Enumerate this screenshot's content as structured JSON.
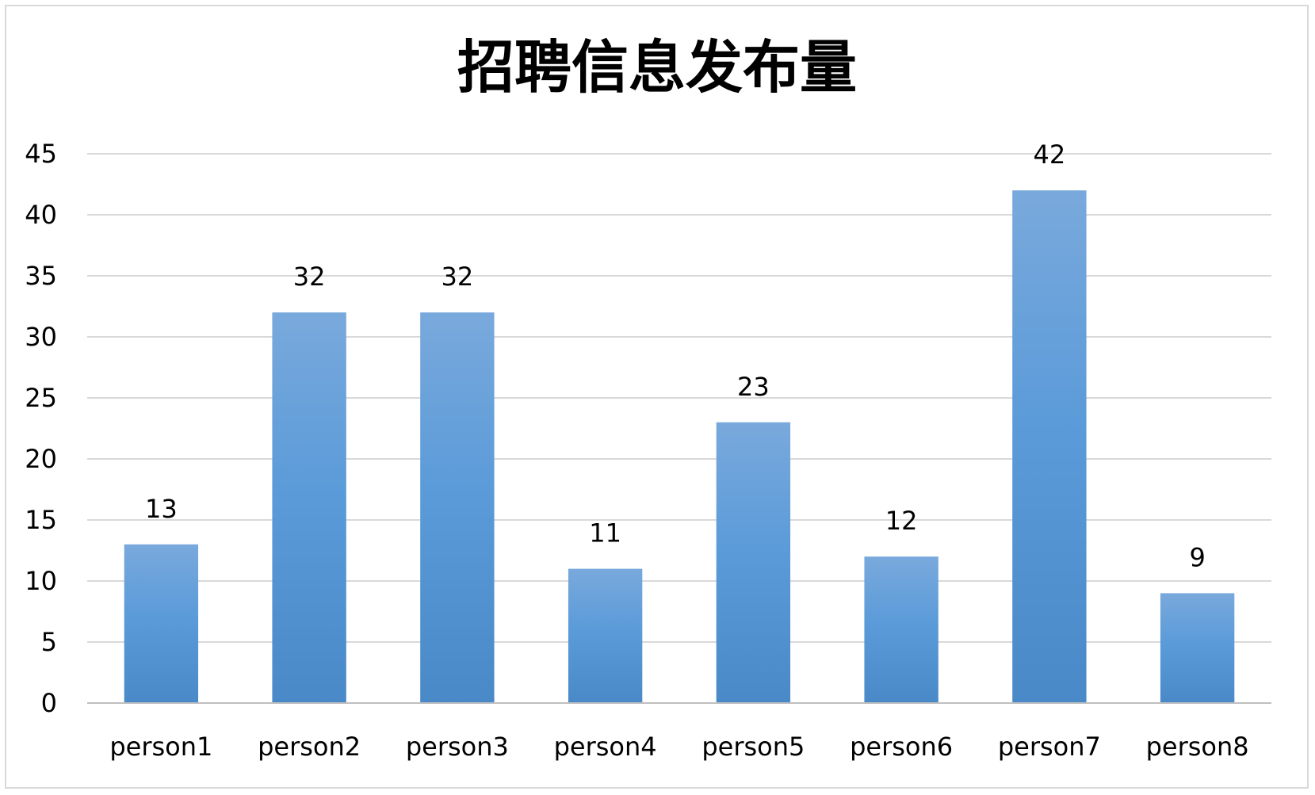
{
  "chart_data": {
    "type": "bar",
    "title": "招聘信息发布量",
    "xlabel": "",
    "ylabel": "",
    "categories": [
      "person1",
      "person2",
      "person3",
      "person4",
      "person5",
      "person6",
      "person7",
      "person8"
    ],
    "values": [
      13,
      32,
      32,
      11,
      23,
      12,
      42,
      9
    ],
    "ylim": [
      0,
      45
    ],
    "yticks": [
      0,
      5,
      10,
      15,
      20,
      25,
      30,
      35,
      40,
      45
    ],
    "grid": true,
    "legend": "none",
    "data_labels": true,
    "colors": {
      "bar_light": "#79a9dc",
      "bar_mid": "#5b9bd9",
      "bar_dark": "#4a89c8",
      "grid": "#d9d9d9",
      "axis": "#bfbfbf"
    }
  }
}
